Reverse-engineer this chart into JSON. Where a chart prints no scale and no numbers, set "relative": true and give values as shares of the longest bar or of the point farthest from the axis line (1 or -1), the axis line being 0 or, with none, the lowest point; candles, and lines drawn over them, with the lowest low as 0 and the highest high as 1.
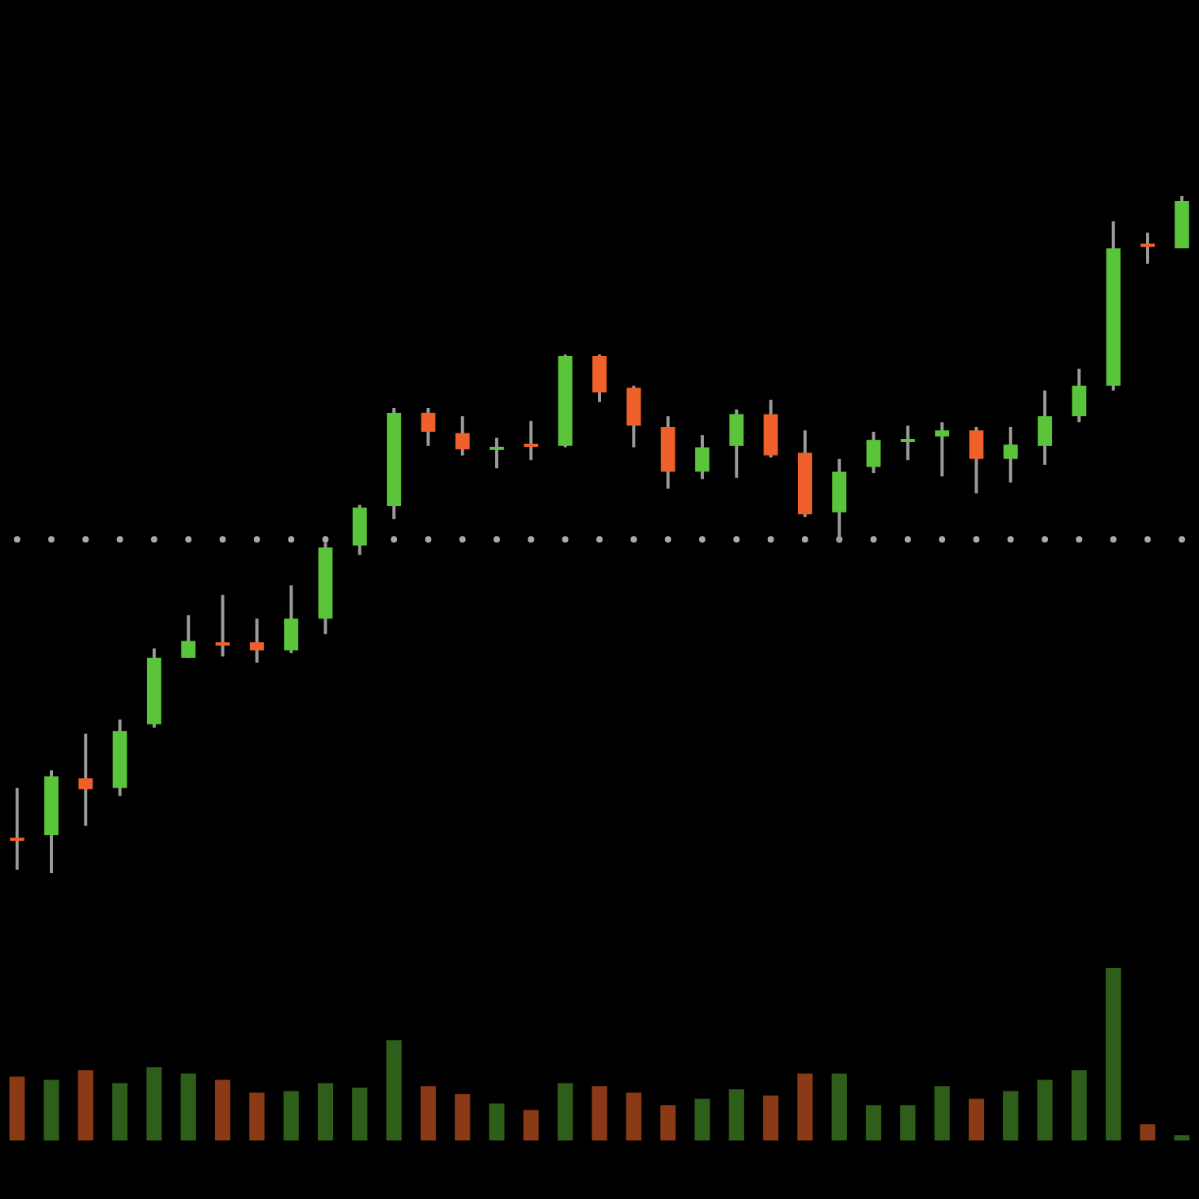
{
  "chart_data": [
    {
      "type": "candlestick",
      "relative": true,
      "categories": [
        null,
        null,
        null,
        null,
        null,
        null,
        null,
        null,
        null,
        null,
        null,
        null,
        null,
        null,
        null,
        null,
        null,
        null,
        null,
        null,
        null,
        null,
        null,
        null,
        null,
        null,
        null,
        null,
        null,
        null,
        null,
        null,
        null,
        null,
        null
      ],
      "ohlc": [
        [
          0.051,
          0.126,
          0.005,
          0.049
        ],
        [
          0.056,
          0.152,
          0,
          0.143
        ],
        [
          0.14,
          0.206,
          0.07,
          0.124
        ],
        [
          0.126,
          0.227,
          0.114,
          0.21
        ],
        [
          0.22,
          0.332,
          0.215,
          0.318
        ],
        [
          0.318,
          0.381,
          0.318,
          0.343
        ],
        [
          0.341,
          0.411,
          0.32,
          0.336
        ],
        [
          0.341,
          0.376,
          0.311,
          0.329
        ],
        [
          0.329,
          0.425,
          0.325,
          0.376
        ],
        [
          0.376,
          0.488,
          0.353,
          0.481
        ],
        [
          0.484,
          0.544,
          0.47,
          0.54
        ],
        [
          0.542,
          0.687,
          0.523,
          0.68
        ],
        [
          0.68,
          0.687,
          0.631,
          0.652
        ],
        [
          0.65,
          0.675,
          0.617,
          0.626
        ],
        [
          0.626,
          0.643,
          0.598,
          0.629
        ],
        [
          0.633,
          0.668,
          0.61,
          0.631
        ],
        [
          0.631,
          0.766,
          0.629,
          0.764
        ],
        [
          0.764,
          0.766,
          0.696,
          0.71
        ],
        [
          0.717,
          0.72,
          0.629,
          0.661
        ],
        [
          0.659,
          0.675,
          0.568,
          0.593
        ],
        [
          0.593,
          0.647,
          0.582,
          0.629
        ],
        [
          0.631,
          0.685,
          0.584,
          0.678
        ],
        [
          0.678,
          0.699,
          0.614,
          0.617
        ],
        [
          0.621,
          0.654,
          0.526,
          0.53
        ],
        [
          0.533,
          0.612,
          0.488,
          0.593
        ],
        [
          0.6,
          0.652,
          0.591,
          0.64
        ],
        [
          0.638,
          0.661,
          0.61,
          0.64
        ],
        [
          0.645,
          0.666,
          0.586,
          0.654
        ],
        [
          0.654,
          0.659,
          0.561,
          0.612
        ],
        [
          0.612,
          0.659,
          0.577,
          0.633
        ],
        [
          0.631,
          0.713,
          0.603,
          0.675
        ],
        [
          0.675,
          0.745,
          0.666,
          0.72
        ],
        [
          0.72,
          0.963,
          0.713,
          0.923
        ],
        [
          0.93,
          0.946,
          0.9,
          0.925
        ],
        [
          0.923,
          1,
          0.923,
          0.993
        ]
      ],
      "colors": [
        "#f0602a",
        "#5ac43a",
        "#f0602a",
        "#5ac43a",
        "#5ac43a",
        "#5ac43a",
        "#f0602a",
        "#f0602a",
        "#5ac43a",
        "#5ac43a",
        "#5ac43a",
        "#5ac43a",
        "#f0602a",
        "#f0602a",
        "#5ac43a",
        "#f0602a",
        "#5ac43a",
        "#f0602a",
        "#f0602a",
        "#f0602a",
        "#5ac43a",
        "#5ac43a",
        "#f0602a",
        "#f0602a",
        "#5ac43a",
        "#5ac43a",
        "#5ac43a",
        "#5ac43a",
        "#f0602a",
        "#5ac43a",
        "#5ac43a",
        "#5ac43a",
        "#5ac43a",
        "#f0602a",
        "#5ac43a"
      ],
      "ref_lines": [
        {
          "axis": "y",
          "value": 0.493,
          "color": "#aaaaaa",
          "line_style": "dotted"
        }
      ]
    },
    {
      "type": "bar",
      "relative": true,
      "categories": [
        null,
        null,
        null,
        null,
        null,
        null,
        null,
        null,
        null,
        null,
        null,
        null,
        null,
        null,
        null,
        null,
        null,
        null,
        null,
        null,
        null,
        null,
        null,
        null,
        null,
        null,
        null,
        null,
        null,
        null,
        null,
        null,
        null,
        null,
        null
      ],
      "values": [
        0.367,
        0.349,
        0.404,
        0.33,
        0.422,
        0.385,
        0.349,
        0.275,
        0.284,
        0.33,
        0.303,
        0.578,
        0.312,
        0.266,
        0.211,
        0.174,
        0.33,
        0.312,
        0.275,
        0.202,
        0.239,
        0.294,
        0.257,
        0.385,
        0.385,
        0.202,
        0.202,
        0.312,
        0.239,
        0.284,
        0.349,
        0.404,
        1,
        0.092,
        0.028
      ],
      "colors": [
        "#8a3a16",
        "#2d5e1a",
        "#8a3a16",
        "#2d5e1a",
        "#2d5e1a",
        "#2d5e1a",
        "#8a3a16",
        "#8a3a16",
        "#2d5e1a",
        "#2d5e1a",
        "#2d5e1a",
        "#2d5e1a",
        "#8a3a16",
        "#8a3a16",
        "#2d5e1a",
        "#8a3a16",
        "#2d5e1a",
        "#8a3a16",
        "#8a3a16",
        "#8a3a16",
        "#2d5e1a",
        "#2d5e1a",
        "#8a3a16",
        "#8a3a16",
        "#2d5e1a",
        "#2d5e1a",
        "#2d5e1a",
        "#2d5e1a",
        "#8a3a16",
        "#2d5e1a",
        "#2d5e1a",
        "#2d5e1a",
        "#2d5e1a",
        "#8a3a16",
        "#2d5e1a"
      ]
    }
  ]
}
